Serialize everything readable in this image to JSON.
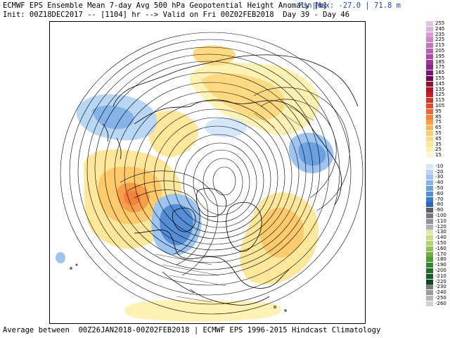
{
  "header": {
    "title": "ECMWF EPS Ensemble Mean 7-day Avg 500 hPa Geopotential Height Anomaly [m]",
    "init_line": "Init: 00Z18DEC2017 -- [1104] hr --> Valid on Fri 00Z02FEB2018  Day 39 - Day 46",
    "minmax": "Min|Max: -27.0 | 71.8 m"
  },
  "footer": "Average between  00Z26JAN2018-00Z02FEB2018 | ECMWF EPS 1996-2015 Hindcast Climatology",
  "colorbar": [
    {
      "label": "255",
      "color": "#e8c2e3"
    },
    {
      "label": "245",
      "color": "#e2b0dc"
    },
    {
      "label": "235",
      "color": "#da9cd3"
    },
    {
      "label": "225",
      "color": "#d087ca"
    },
    {
      "label": "215",
      "color": "#c672bf"
    },
    {
      "label": "205",
      "color": "#bb5eb4"
    },
    {
      "label": "195",
      "color": "#ae4aa5"
    },
    {
      "label": "185",
      "color": "#a03896"
    },
    {
      "label": "175",
      "color": "#902485"
    },
    {
      "label": "165",
      "color": "#7d1470"
    },
    {
      "label": "155",
      "color": "#6b0a5e"
    },
    {
      "label": "145",
      "color": "#9c0d21"
    },
    {
      "label": "135",
      "color": "#b3142a"
    },
    {
      "label": "125",
      "color": "#c81e2a"
    },
    {
      "label": "115",
      "color": "#d93028"
    },
    {
      "label": "105",
      "color": "#e54a2a"
    },
    {
      "label": "95",
      "color": "#ef6530"
    },
    {
      "label": "85",
      "color": "#f4813c"
    },
    {
      "label": "75",
      "color": "#f89d48"
    },
    {
      "label": "65",
      "color": "#fbb65a"
    },
    {
      "label": "55",
      "color": "#fdca6c"
    },
    {
      "label": "45",
      "color": "#fdda82"
    },
    {
      "label": "35",
      "color": "#fde79a"
    },
    {
      "label": "25",
      "color": "#fdf1b3"
    },
    {
      "label": "15",
      "color": "#fdf8cf"
    },
    {
      "label": "",
      "color": "#ffffff"
    },
    {
      "label": "-10",
      "color": "#d3e6fa"
    },
    {
      "label": "-20",
      "color": "#b9d6f5"
    },
    {
      "label": "-30",
      "color": "#9ec5ef"
    },
    {
      "label": "-40",
      "color": "#84b3e8"
    },
    {
      "label": "-50",
      "color": "#6ba1e0"
    },
    {
      "label": "-60",
      "color": "#548ed6"
    },
    {
      "label": "-70",
      "color": "#3f7ac9"
    },
    {
      "label": "-80",
      "color": "#2e65b8"
    },
    {
      "label": "-90",
      "color": "#5e5e66"
    },
    {
      "label": "-100",
      "color": "#777780"
    },
    {
      "label": "-110",
      "color": "#9090a0"
    },
    {
      "label": "-120",
      "color": "#b0b0bc"
    },
    {
      "label": "-130",
      "color": "#e0e8a8"
    },
    {
      "label": "-140",
      "color": "#c9df86"
    },
    {
      "label": "-150",
      "color": "#aed46a"
    },
    {
      "label": "-160",
      "color": "#8ec452"
    },
    {
      "label": "-170",
      "color": "#6cb040"
    },
    {
      "label": "-180",
      "color": "#4d9c36"
    },
    {
      "label": "-190",
      "color": "#34862e"
    },
    {
      "label": "-200",
      "color": "#1f6f28"
    },
    {
      "label": "-210",
      "color": "#135d23"
    },
    {
      "label": "-220",
      "color": "#0b4a1c"
    },
    {
      "label": "-230",
      "color": "#7c7c7c"
    },
    {
      "label": "-240",
      "color": "#9a9a9a"
    },
    {
      "label": "-250",
      "color": "#b6b6b6"
    },
    {
      "label": "-260",
      "color": "#d2d2d2"
    }
  ]
}
